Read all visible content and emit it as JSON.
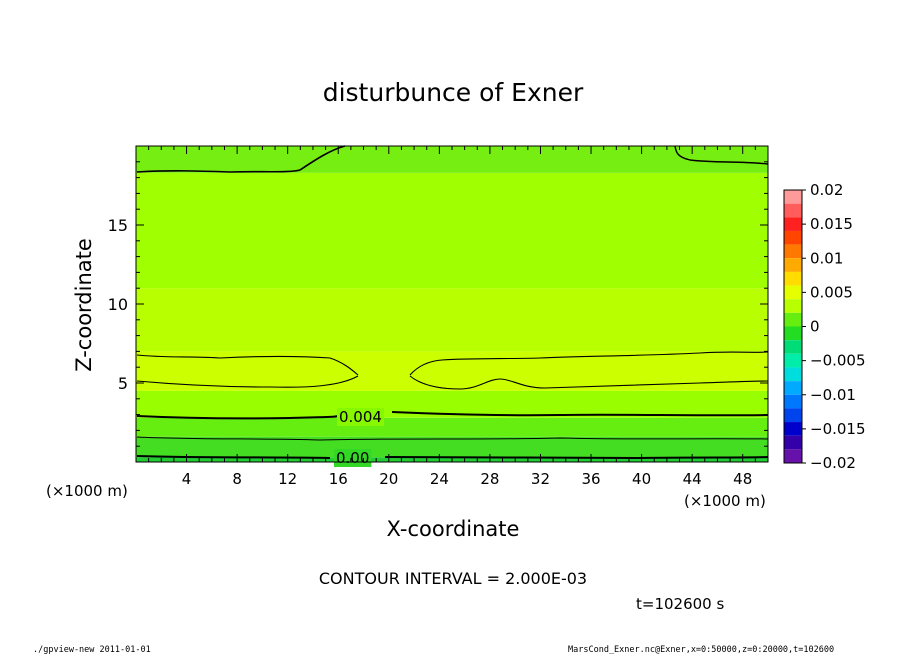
{
  "chart_data": {
    "type": "heatmap",
    "title": "disturbunce of Exner",
    "xlabel": "X-coordinate",
    "ylabel": "Z-coordinate",
    "x_unit": "(×1000 m)",
    "y_unit": "(×1000 m)",
    "xlim": [
      0,
      50
    ],
    "ylim": [
      0,
      20
    ],
    "x_ticks": [
      4,
      8,
      12,
      16,
      20,
      24,
      28,
      32,
      36,
      40,
      44,
      48
    ],
    "y_ticks": [
      5,
      10,
      15
    ],
    "contour_interval_text": "CONTOUR INTERVAL = 2.000E-03",
    "time_text": "t=102600 s",
    "contour_labels": [
      "0.004",
      "0.00"
    ],
    "bands": [
      {
        "z": [
          0.0,
          0.3
        ],
        "value": 0.0,
        "color": "#22cc33"
      },
      {
        "z": [
          0.3,
          1.6
        ],
        "value": 0.001,
        "color": "#44dd22"
      },
      {
        "z": [
          1.6,
          2.8
        ],
        "value": 0.002,
        "color": "#66ee11"
      },
      {
        "z": [
          2.8,
          4.5
        ],
        "value": 0.004,
        "color": "#99ff00"
      },
      {
        "z": [
          4.5,
          7.0
        ],
        "value": 0.006,
        "color": "#ccff00"
      },
      {
        "z": [
          7.0,
          11.0
        ],
        "value": 0.005,
        "color": "#b8ff00"
      },
      {
        "z": [
          11.0,
          18.3
        ],
        "value": 0.004,
        "color": "#a0ff00"
      },
      {
        "z": [
          18.3,
          20.0
        ],
        "value": 0.002,
        "color": "#77ee11"
      }
    ],
    "colorbar": {
      "tick_labels": [
        "0.02",
        "0.015",
        "0.01",
        "0.005",
        "0",
        "−0.005",
        "−0.01",
        "−0.015",
        "−0.02"
      ],
      "tick_values": [
        0.02,
        0.015,
        0.01,
        0.005,
        0,
        -0.005,
        -0.01,
        -0.015,
        -0.02
      ],
      "levels": [
        {
          "value": 0.019,
          "color": "#ff9a9a"
        },
        {
          "value": 0.017,
          "color": "#ff5c5c"
        },
        {
          "value": 0.015,
          "color": "#ff2020"
        },
        {
          "value": 0.013,
          "color": "#ff4500"
        },
        {
          "value": 0.011,
          "color": "#ff7800"
        },
        {
          "value": 0.009,
          "color": "#ffaa00"
        },
        {
          "value": 0.007,
          "color": "#ffdd00"
        },
        {
          "value": 0.005,
          "color": "#e6ff00"
        },
        {
          "value": 0.003,
          "color": "#b8ff00"
        },
        {
          "value": 0.001,
          "color": "#66ee11"
        },
        {
          "value": -0.001,
          "color": "#22dd22"
        },
        {
          "value": -0.003,
          "color": "#00dd77"
        },
        {
          "value": -0.005,
          "color": "#00eeaa"
        },
        {
          "value": -0.007,
          "color": "#00dddd"
        },
        {
          "value": -0.009,
          "color": "#00aaff"
        },
        {
          "value": -0.011,
          "color": "#0077ff"
        },
        {
          "value": -0.013,
          "color": "#0044ee"
        },
        {
          "value": -0.015,
          "color": "#0000cc"
        },
        {
          "value": -0.017,
          "color": "#3300aa"
        },
        {
          "value": -0.019,
          "color": "#6611aa"
        }
      ]
    }
  },
  "footer": {
    "left": "./gpview-new   2011-01-01",
    "right": "MarsCond_Exner.nc@Exner,x=0:50000,z=0:20000,t=102600"
  }
}
